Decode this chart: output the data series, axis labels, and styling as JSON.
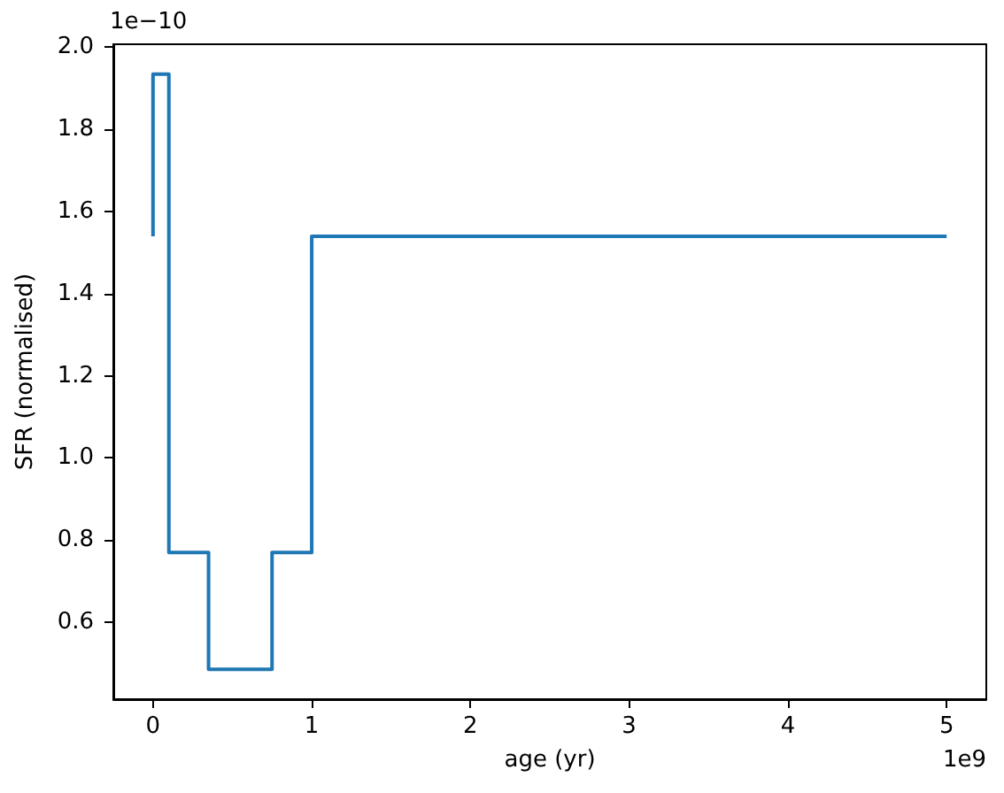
{
  "chart_data": {
    "type": "step",
    "xlabel": "age (yr)",
    "ylabel": "SFR (normalised)",
    "x": [
      0,
      0.1,
      0.35,
      0.75,
      1,
      5
    ],
    "series": [
      {
        "color": "#1f77b4",
        "values": [
          1.54,
          1.935,
          0.77,
          0.485,
          0.77,
          1.54
        ]
      }
    ],
    "xlim": [
      -0.25,
      5.25
    ],
    "xticks": [
      0,
      1,
      2,
      3,
      4,
      5
    ],
    "ylim": [
      0.4125,
      2.0075
    ],
    "yticks": [
      0.6,
      0.8,
      {
        "value": 1,
        "label": "1.0"
      },
      1.2,
      1.4,
      1.6,
      1.8,
      {
        "value": 2,
        "label": "2.0"
      }
    ],
    "grid": false,
    "annotations": [
      "1e−10",
      "1e9"
    ]
  }
}
